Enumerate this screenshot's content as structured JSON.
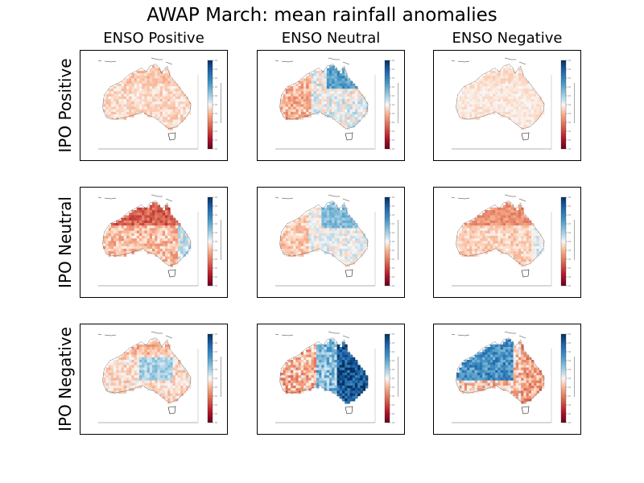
{
  "figure": {
    "title": "AWAP March: mean rainfall anomalies",
    "column_titles": [
      "ENSO Positive",
      "ENSO Neutral",
      "ENSO Negative"
    ],
    "row_titles": [
      "IPO Positive",
      "IPO Neutral",
      "IPO Negative"
    ]
  },
  "colormap": {
    "name": "RdBu",
    "dry_color": "#67001f",
    "neutral_color": "#f7f7f7",
    "wet_color": "#053061"
  },
  "panels": [
    {
      "row": "IPO Positive",
      "col": "ENSO Positive",
      "pattern": "mild-dry",
      "strength": 0.35
    },
    {
      "row": "IPO Positive",
      "col": "ENSO Neutral",
      "pattern": "wet-north-dry-west",
      "strength": 0.6
    },
    {
      "row": "IPO Positive",
      "col": "ENSO Negative",
      "pattern": "mild-dry",
      "strength": 0.2
    },
    {
      "row": "IPO Neutral",
      "col": "ENSO Positive",
      "pattern": "dry-north",
      "strength": 0.7
    },
    {
      "row": "IPO Neutral",
      "col": "ENSO Neutral",
      "pattern": "wet-north",
      "strength": 0.45
    },
    {
      "row": "IPO Neutral",
      "col": "ENSO Negative",
      "pattern": "dry-north",
      "strength": 0.45
    },
    {
      "row": "IPO Negative",
      "col": "ENSO Positive",
      "pattern": "mixed",
      "strength": 0.4
    },
    {
      "row": "IPO Negative",
      "col": "ENSO Neutral",
      "pattern": "wet-east",
      "strength": 0.85
    },
    {
      "row": "IPO Negative",
      "col": "ENSO Negative",
      "pattern": "wet-north-west",
      "strength": 0.75
    }
  ]
}
